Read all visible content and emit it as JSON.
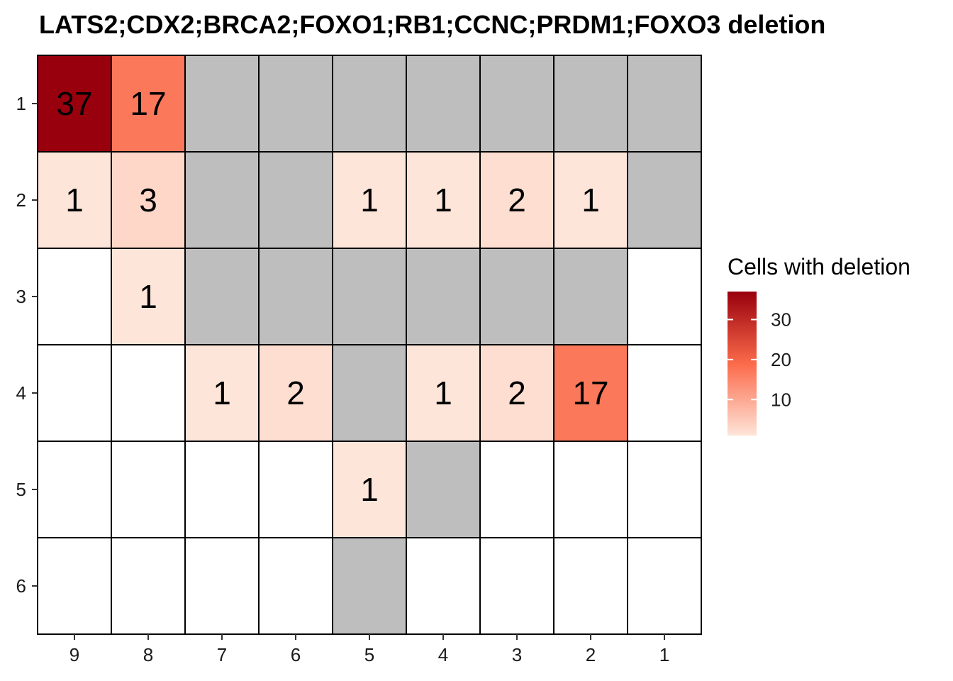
{
  "chart_data": {
    "type": "heatmap",
    "title": "LATS2;CDX2;BRCA2;FOXO1;RB1;CCNC;PRDM1;FOXO3 deletion",
    "x_categories": [
      "9",
      "8",
      "7",
      "6",
      "5",
      "4",
      "3",
      "2",
      "1"
    ],
    "y_categories": [
      "1",
      "2",
      "3",
      "4",
      "5",
      "6"
    ],
    "cells": [
      [
        "37",
        "17",
        "NA",
        "NA",
        "NA",
        "NA",
        "NA",
        "NA",
        "NA"
      ],
      [
        "1",
        "3",
        "NA",
        "NA",
        "1",
        "1",
        "2",
        "1",
        "NA"
      ],
      [
        "",
        "1",
        "NA",
        "NA",
        "NA",
        "NA",
        "NA",
        "NA",
        ""
      ],
      [
        "",
        "",
        "1",
        "2",
        "NA",
        "1",
        "2",
        "17",
        ""
      ],
      [
        "",
        "",
        "",
        "",
        "1",
        "NA",
        "",
        "",
        ""
      ],
      [
        "",
        "",
        "",
        "",
        "NA",
        "",
        "",
        "",
        ""
      ]
    ],
    "legend": {
      "title": "Cells with deletion",
      "ticks": [
        "30",
        "20",
        "10"
      ],
      "range": [
        1,
        37
      ],
      "placement": "right"
    },
    "colors": {
      "low": "#fee5d9",
      "mid": "#fb6a4a",
      "high": "#99000d",
      "na": "#bebebe",
      "empty": "#ffffff",
      "grid": "#000000"
    }
  }
}
